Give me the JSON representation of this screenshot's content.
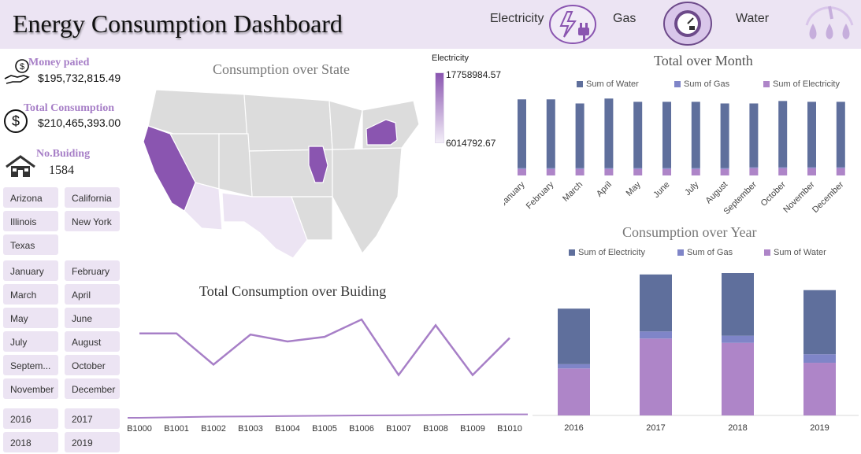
{
  "header": {
    "title": "Energy Consumption Dashboard",
    "electricity_label": "Electricity",
    "gas_label": "Gas",
    "water_label": "Water"
  },
  "kpis": {
    "money_title": "Money paied",
    "money_value": "$195,732,815.49",
    "total_title": "Total Consumption",
    "total_value": "$210,465,393.00",
    "buildings_title": "No.Buiding",
    "buildings_value": "1584"
  },
  "slicers": {
    "states": [
      "Arizona",
      "California",
      "Illinois",
      "New York",
      "Texas"
    ],
    "months": [
      "January",
      "February",
      "March",
      "April",
      "May",
      "June",
      "July",
      "August",
      "Septem...",
      "October",
      "November",
      "December"
    ],
    "years": [
      "2016",
      "2017",
      "2018",
      "2019"
    ]
  },
  "map": {
    "title": "Consumption over State",
    "legend_title": "Electricity",
    "legend_max": "17758984.57",
    "legend_min": "6014792.67",
    "colors": {
      "high": "#8a55b0",
      "low": "#ece4f3",
      "base": "#dcdcdc"
    }
  },
  "colors": {
    "water": "#5f6f9c",
    "gas": "#7f85c8",
    "electricity": "#ae85c8",
    "line": "#a77fc7",
    "accent": "#a77fc7"
  },
  "chart_data": [
    {
      "type": "bar",
      "title": "Total over Month",
      "categories": [
        "January",
        "February",
        "March",
        "April",
        "May",
        "June",
        "July",
        "August",
        "September",
        "October",
        "November",
        "December"
      ],
      "series": [
        {
          "name": "Sum of Water",
          "values": [
            8.4,
            8.4,
            7.9,
            8.5,
            8.1,
            8.1,
            8.1,
            7.9,
            7.8,
            8.1,
            8.0,
            8.0
          ]
        },
        {
          "name": "Sum of Gas",
          "values": [
            0.1,
            0.1,
            0.1,
            0.1,
            0.1,
            0.1,
            0.1,
            0.1,
            0.1,
            0.1,
            0.1,
            0.1
          ]
        },
        {
          "name": "Sum of Electricity",
          "values": [
            0.8,
            0.8,
            0.8,
            0.8,
            0.8,
            0.8,
            0.8,
            0.8,
            0.9,
            0.9,
            0.9,
            0.9
          ]
        }
      ],
      "stack_order": [
        "Sum of Electricity",
        "Sum of Gas",
        "Sum of Water"
      ],
      "ylim": [
        0,
        10
      ],
      "legend": "top"
    },
    {
      "type": "bar",
      "title": "Consumption over Year",
      "categories": [
        "2016",
        "2017",
        "2018",
        "2019"
      ],
      "series": [
        {
          "name": "Sum of Electricity",
          "values": [
            3.9,
            4.0,
            4.4,
            4.5
          ]
        },
        {
          "name": "Sum of Gas",
          "values": [
            0.3,
            0.5,
            0.5,
            0.6
          ]
        },
        {
          "name": "Sum of Water",
          "values": [
            3.3,
            5.4,
            5.1,
            3.7
          ]
        }
      ],
      "stack_order": [
        "Sum of Water",
        "Sum of Gas",
        "Sum of Electricity"
      ],
      "ylim": [
        0,
        10
      ],
      "legend": "top"
    },
    {
      "type": "line",
      "title": "Total Consumption over Buiding",
      "categories": [
        "B1000",
        "B1001",
        "B1002",
        "B1003",
        "B1004",
        "B1005",
        "B1006",
        "B1007",
        "B1008",
        "B1009",
        "B1010"
      ],
      "series": [
        {
          "values": [
            7.3,
            7.3,
            4.6,
            7.2,
            6.6,
            7.0,
            8.5,
            3.7,
            8.0,
            3.7,
            6.9
          ]
        },
        {
          "values": [
            0.0,
            0.05,
            0.1,
            0.12,
            0.15,
            0.18,
            0.2,
            0.22,
            0.25,
            0.28,
            0.3
          ]
        }
      ],
      "ylim": [
        0,
        10
      ]
    }
  ]
}
